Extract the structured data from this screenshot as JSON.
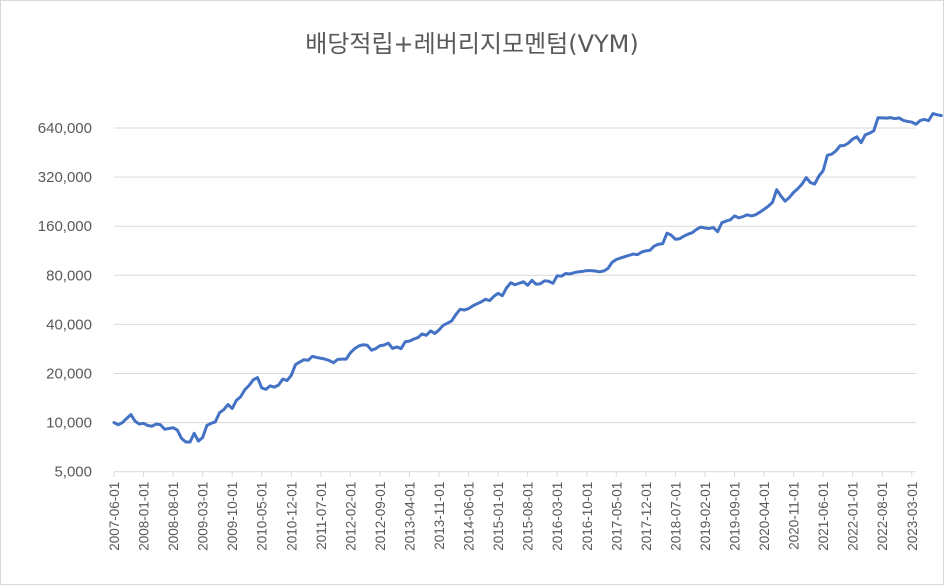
{
  "chart_data": {
    "type": "line",
    "title": "배당적립+레버리지모멘텀(VYM)",
    "xlabel": "",
    "ylabel": "",
    "y_scale": "log2",
    "ylim": [
      5000,
      800000
    ],
    "y_ticks": [
      5000,
      10000,
      20000,
      40000,
      80000,
      160000,
      320000,
      640000
    ],
    "y_tick_labels": [
      "5,000",
      "10,000",
      "20,000",
      "40,000",
      "80,000",
      "160,000",
      "320,000",
      "640,000"
    ],
    "x_tick_labels": [
      "2007-06-01",
      "2008-01-01",
      "2008-08-01",
      "2009-03-01",
      "2009-10-01",
      "2010-05-01",
      "2010-12-01",
      "2011-07-01",
      "2012-02-01",
      "2012-09-01",
      "2013-04-01",
      "2013-11-01",
      "2014-06-01",
      "2015-01-01",
      "2015-08-01",
      "2016-03-01",
      "2016-10-01",
      "2017-05-01",
      "2017-12-01",
      "2018-07-01",
      "2019-02-01",
      "2019-09-01",
      "2020-04-01",
      "2020-11-01",
      "2021-06-01",
      "2022-01-01",
      "2022-08-01",
      "2023-03-01"
    ],
    "x_start": "2007-06",
    "x_end": "2023-04",
    "grid": "horizontal",
    "line_color": "#4472c4",
    "series": [
      {
        "name": "",
        "values": [
          10000,
          9700,
          10000,
          10600,
          11200,
          10200,
          9800,
          9900,
          9600,
          9500,
          9800,
          9700,
          9100,
          9200,
          9300,
          9000,
          8000,
          7600,
          7600,
          8600,
          7700,
          8100,
          9600,
          9900,
          10100,
          11500,
          12000,
          12900,
          12200,
          13700,
          14400,
          15900,
          16900,
          18300,
          18900,
          16300,
          16000,
          16800,
          16500,
          17000,
          18500,
          18100,
          19500,
          22700,
          23500,
          24300,
          24100,
          25500,
          25100,
          24800,
          24500,
          24000,
          23300,
          24400,
          24500,
          24500,
          26800,
          28400,
          29500,
          30000,
          29800,
          27800,
          28400,
          29600,
          29900,
          30700,
          28500,
          29100,
          28400,
          31300,
          31600,
          32500,
          33200,
          35000,
          34300,
          36500,
          35200,
          37000,
          39500,
          40700,
          42000,
          46000,
          49500,
          49000,
          50000,
          52000,
          53500,
          55000,
          57000,
          56000,
          59500,
          62000,
          60000,
          67000,
          72000,
          70000,
          71500,
          73000,
          69500,
          74500,
          70500,
          71000,
          74000,
          73500,
          71500,
          79500,
          79000,
          82000,
          81500,
          83000,
          84000,
          84500,
          85500,
          85500,
          85000,
          84000,
          85000,
          88000,
          96000,
          100000,
          102000,
          104000,
          106000,
          108000,
          107000,
          111000,
          113000,
          114000,
          121000,
          124000,
          125000,
          145000,
          141000,
          133000,
          134000,
          139000,
          143000,
          146000,
          153000,
          158000,
          156000,
          155000,
          157000,
          148000,
          168000,
          172000,
          175000,
          185000,
          180000,
          183000,
          188000,
          185000,
          188000,
          195000,
          203000,
          212000,
          224000,
          268000,
          245000,
          228000,
          240000,
          258000,
          272000,
          290000,
          318000,
          296000,
          290000,
          325000,
          350000,
          435000,
          442000,
          462000,
          498000,
          500000,
          518000,
          548000,
          565000,
          520000,
          582000,
          595000,
          615000,
          740000,
          738000,
          736000,
          741000,
          730000,
          738000,
          712000,
          702000,
          696000,
          675000,
          712000,
          722000,
          710000,
          784000,
          772000,
          762000
        ]
      }
    ]
  }
}
